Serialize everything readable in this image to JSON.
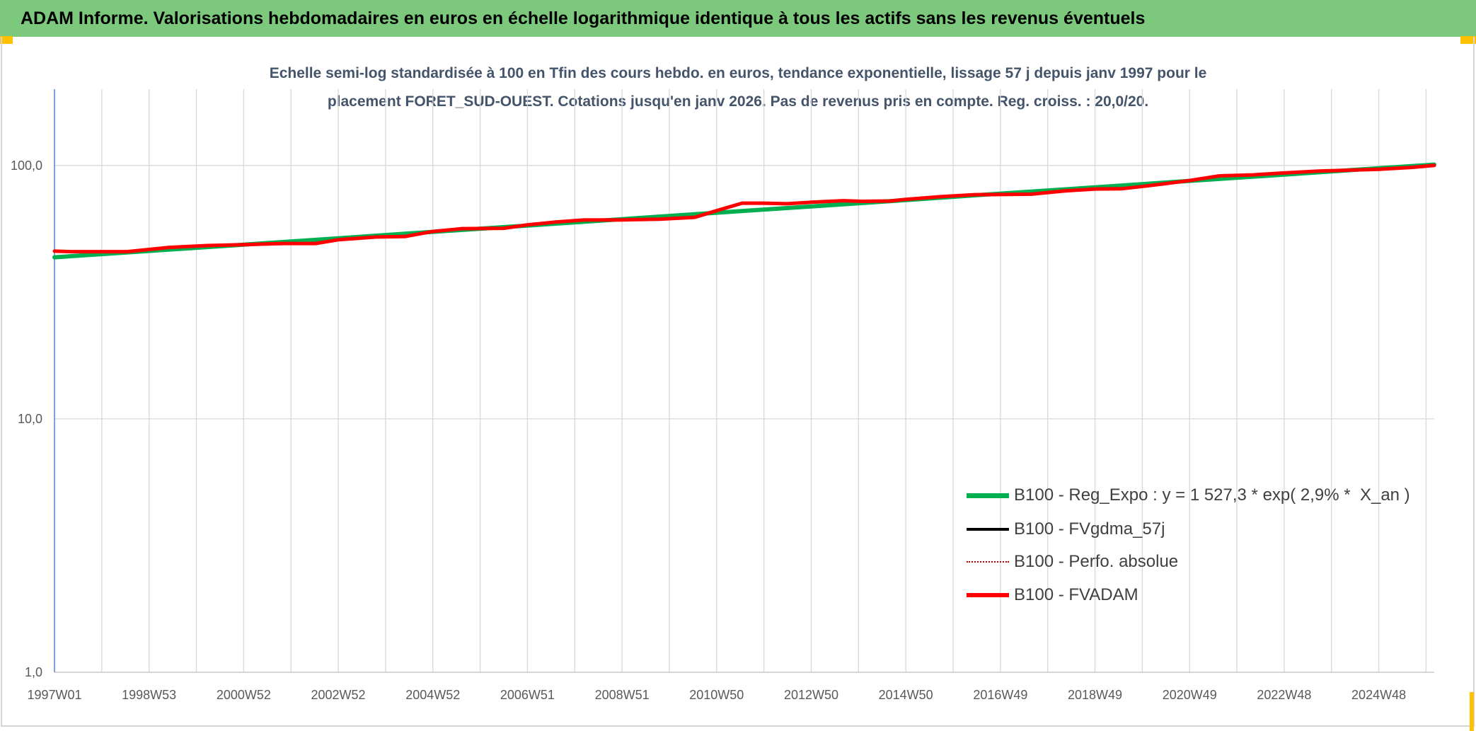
{
  "header": {
    "title": "ADAM Informe. Valorisations hebdomadaires en euros en échelle logarithmique identique à tous les actifs sans les revenus éventuels"
  },
  "colors": {
    "banner": "#7cc87c",
    "corner_marker": "#ffc000",
    "chart_title": "#44546a",
    "y_axis_line": "#5b8bd0",
    "gridline": "#d9d9d9"
  },
  "chart_data": {
    "type": "line",
    "title_lines": [
      "Echelle semi-log standardisée à 100 en Tfin des cours hebdo. en euros, tendance exponentielle, lissage 57 j depuis janv 1997 pour le",
      "placement FORET_SUD-OUEST. Cotations jusqu'en janv 2026. Pas de revenus pris en compte. Reg. croiss. : 20,0/20."
    ],
    "xlabel": "",
    "ylabel": "",
    "yscale": "log",
    "ylim": [
      1,
      200
    ],
    "xlim": [
      "1997W01",
      "2026W05"
    ],
    "x_ticks": [
      "1997W01",
      "1998W53",
      "2000W52",
      "2002W52",
      "2004W52",
      "2006W51",
      "2008W51",
      "2010W50",
      "2012W50",
      "2014W50",
      "2016W49",
      "2018W49",
      "2020W49",
      "2022W48",
      "2024W48"
    ],
    "y_ticks": [
      {
        "value": 100,
        "label": "100,0"
      },
      {
        "value": 10,
        "label": "10,0"
      },
      {
        "value": 1,
        "label": "1,0"
      }
    ],
    "grid": true,
    "legend_position": "bottom-right",
    "series": [
      {
        "name": "B100 - Reg_Expo : y = 1 527,3 * exp( 2,9% *  X_an )",
        "color": "#00b050",
        "style": "solid",
        "x": [
          "1997W01",
          "1998W53",
          "2000W52",
          "2002W52",
          "2004W52",
          "2006W51",
          "2008W51",
          "2010W50",
          "2012W50",
          "2014W50",
          "2016W49",
          "2018W49",
          "2020W49",
          "2022W48",
          "2024W48",
          "2026W05"
        ],
        "y": [
          43.4,
          46.0,
          48.7,
          51.6,
          54.7,
          57.9,
          61.4,
          65.1,
          68.9,
          73.0,
          77.4,
          82.0,
          86.9,
          92.0,
          97.5,
          100.8
        ]
      },
      {
        "name": "B100 - FVgdma_57j",
        "color": "#000000",
        "style": "solid",
        "x": [],
        "y": []
      },
      {
        "name": "B100 - Perfo. absolue",
        "color": "#c00000",
        "style": "dotted",
        "x": [],
        "y": []
      },
      {
        "name": "B100 - FVADAM",
        "color": "#ff0000",
        "style": "solid",
        "x": [
          "1997W01",
          "1997W19",
          "1998W29",
          "1999W22",
          "2000W12",
          "2000W52",
          "2001W43",
          "2002W27",
          "2002W52",
          "2003W42",
          "2004W21",
          "2004W52",
          "2005W31",
          "2006W25",
          "2006W51",
          "2007W30",
          "2008W09",
          "2008W51",
          "2009W40",
          "2010W26",
          "2010W50",
          "2011W26",
          "2011W50",
          "2012W23",
          "2012W50",
          "2013W33",
          "2014W02",
          "2014W33",
          "2014W50",
          "2015W38",
          "2016W21",
          "2016W49",
          "2017W31",
          "2018W15",
          "2018W49",
          "2019W26",
          "2019W51",
          "2020W25",
          "2020W49",
          "2021W29",
          "2022W14",
          "2022W48",
          "2023W34",
          "2024W48",
          "2025W33",
          "2026W05"
        ],
        "y": [
          45.9,
          45.7,
          45.7,
          47.5,
          48.3,
          48.7,
          49.2,
          49.2,
          50.9,
          52.2,
          52.4,
          54.9,
          56.3,
          56.5,
          58.3,
          59.8,
          60.9,
          61.0,
          61.4,
          62.4,
          66.3,
          71.0,
          71.0,
          70.6,
          71.6,
          72.6,
          72.2,
          72.4,
          73.5,
          75.4,
          76.7,
          76.8,
          77.0,
          79.3,
          80.7,
          80.9,
          82.8,
          85.0,
          87.2,
          91.0,
          91.8,
          93.4,
          95.0,
          96.6,
          98.3,
          100.0
        ]
      }
    ]
  }
}
